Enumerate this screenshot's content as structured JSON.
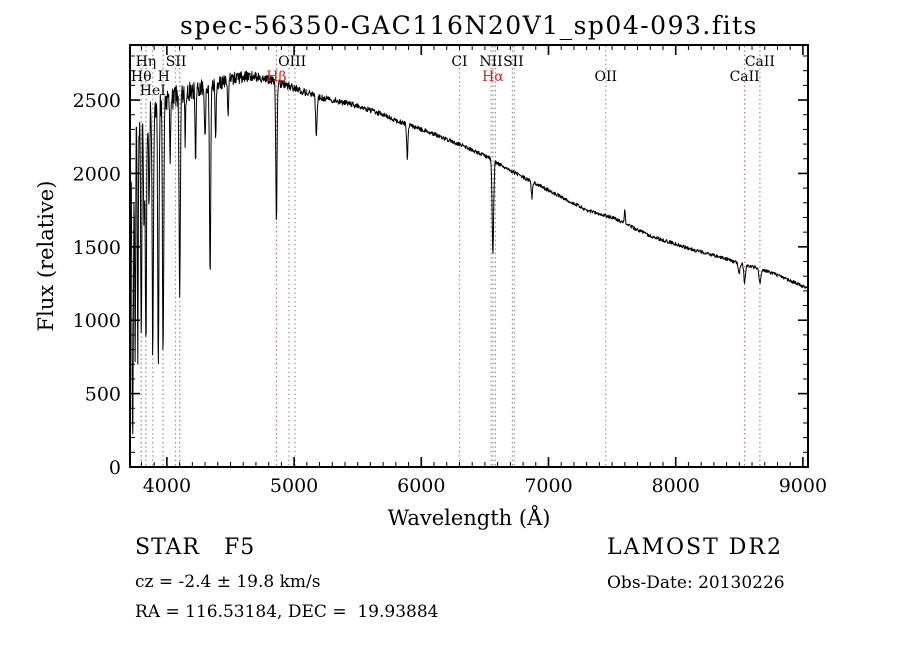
{
  "chart_data": {
    "type": "line",
    "title": "spec-56350-GAC116N20V1_sp04-093.fits",
    "xlabel": "Wavelength (Å)",
    "ylabel": "Flux (relative)",
    "xlim": [
      3710,
      9040
    ],
    "ylim": [
      0,
      2875
    ],
    "x_ticks": [
      4000,
      5000,
      6000,
      7000,
      8000,
      9000
    ],
    "x_minor_step": 100,
    "y_ticks": [
      0,
      500,
      1000,
      1500,
      2000,
      2500
    ],
    "y_minor_step": 100,
    "grid": false,
    "trace_color": "#000000",
    "sample_step": 3,
    "continuum": [
      [
        3710,
        2280
      ],
      [
        3760,
        2330
      ],
      [
        3810,
        2380
      ],
      [
        3860,
        2430
      ],
      [
        3910,
        2470
      ],
      [
        3960,
        2490
      ],
      [
        4000,
        2500
      ],
      [
        4100,
        2540
      ],
      [
        4200,
        2570
      ],
      [
        4300,
        2600
      ],
      [
        4400,
        2620
      ],
      [
        4500,
        2640
      ],
      [
        4600,
        2660
      ],
      [
        4700,
        2660
      ],
      [
        4800,
        2640
      ],
      [
        4900,
        2610
      ],
      [
        5000,
        2580
      ],
      [
        5100,
        2550
      ],
      [
        5200,
        2520
      ],
      [
        5300,
        2500
      ],
      [
        5400,
        2480
      ],
      [
        5500,
        2460
      ],
      [
        5600,
        2430
      ],
      [
        5700,
        2400
      ],
      [
        5800,
        2360
      ],
      [
        5900,
        2330
      ],
      [
        6000,
        2300
      ],
      [
        6100,
        2270
      ],
      [
        6200,
        2230
      ],
      [
        6300,
        2200
      ],
      [
        6400,
        2160
      ],
      [
        6500,
        2120
      ],
      [
        6600,
        2070
      ],
      [
        6700,
        2020
      ],
      [
        6800,
        1975
      ],
      [
        6900,
        1930
      ],
      [
        7000,
        1885
      ],
      [
        7100,
        1840
      ],
      [
        7200,
        1795
      ],
      [
        7300,
        1750
      ],
      [
        7400,
        1725
      ],
      [
        7500,
        1700
      ],
      [
        7600,
        1660
      ],
      [
        7700,
        1615
      ],
      [
        7800,
        1575
      ],
      [
        7900,
        1545
      ],
      [
        8000,
        1520
      ],
      [
        8100,
        1490
      ],
      [
        8200,
        1465
      ],
      [
        8300,
        1440
      ],
      [
        8400,
        1415
      ],
      [
        8500,
        1390
      ],
      [
        8600,
        1365
      ],
      [
        8700,
        1340
      ],
      [
        8800,
        1305
      ],
      [
        8900,
        1270
      ],
      [
        9000,
        1230
      ],
      [
        9040,
        1215
      ]
    ],
    "absorption_lines": [
      {
        "wl": 3712,
        "depth": 900,
        "sigma": 4
      },
      {
        "wl": 3727,
        "depth": 1500,
        "sigma": 4
      },
      {
        "wl": 3734,
        "depth": 1450,
        "sigma": 4
      },
      {
        "wl": 3750,
        "depth": 1520,
        "sigma": 4
      },
      {
        "wl": 3771,
        "depth": 1520,
        "sigma": 4
      },
      {
        "wl": 3798,
        "depth": 1560,
        "sigma": 4
      },
      {
        "wl": 3820,
        "depth": 700,
        "sigma": 4
      },
      {
        "wl": 3835,
        "depth": 1620,
        "sigma": 5
      },
      {
        "wl": 3860,
        "depth": 650,
        "sigma": 4
      },
      {
        "wl": 3889,
        "depth": 1700,
        "sigma": 5
      },
      {
        "wl": 3933,
        "depth": 1850,
        "sigma": 5
      },
      {
        "wl": 3970,
        "depth": 1800,
        "sigma": 5
      },
      {
        "wl": 4026,
        "depth": 420,
        "sigma": 4
      },
      {
        "wl": 4101,
        "depth": 1400,
        "sigma": 5
      },
      {
        "wl": 4144,
        "depth": 320,
        "sigma": 4
      },
      {
        "wl": 4226,
        "depth": 480,
        "sigma": 4
      },
      {
        "wl": 4300,
        "depth": 360,
        "sigma": 5
      },
      {
        "wl": 4340,
        "depth": 1330,
        "sigma": 5
      },
      {
        "wl": 4383,
        "depth": 360,
        "sigma": 4
      },
      {
        "wl": 4481,
        "depth": 260,
        "sigma": 4
      },
      {
        "wl": 4861,
        "depth": 930,
        "sigma": 5
      },
      {
        "wl": 5175,
        "depth": 260,
        "sigma": 6
      },
      {
        "wl": 5890,
        "depth": 230,
        "sigma": 5
      },
      {
        "wl": 6563,
        "depth": 640,
        "sigma": 6
      },
      {
        "wl": 6870,
        "depth": 110,
        "sigma": 5
      },
      {
        "wl": 8498,
        "depth": 80,
        "sigma": 6
      },
      {
        "wl": 8542,
        "depth": 120,
        "sigma": 7
      },
      {
        "wl": 8662,
        "depth": 100,
        "sigma": 7
      }
    ],
    "emission_spikes": [
      {
        "wl": 7600,
        "height": 85,
        "sigma": 4
      }
    ],
    "noise": {
      "base": 12,
      "blue_extra": 125,
      "decay": 600
    },
    "line_markers": [
      {
        "wl": 3798,
        "color": "#b06060"
      },
      {
        "wl": 3835,
        "color": "#b06060"
      },
      {
        "wl": 3889,
        "color": "#8a8a8a"
      },
      {
        "wl": 3970,
        "color": "#b06060"
      },
      {
        "wl": 4068,
        "color": "#8a8a8a"
      },
      {
        "wl": 4101,
        "color": "#b06060"
      },
      {
        "wl": 4861,
        "color": "#b06060"
      },
      {
        "wl": 4959,
        "color": "#8a8a8a"
      },
      {
        "wl": 5007,
        "color": "#8a8a8a"
      },
      {
        "wl": 6300,
        "color": "#8a8a8a"
      },
      {
        "wl": 6548,
        "color": "#8a8a8a"
      },
      {
        "wl": 6563,
        "color": "#b06060"
      },
      {
        "wl": 6583,
        "color": "#8a8a8a"
      },
      {
        "wl": 6716,
        "color": "#8a8a8a"
      },
      {
        "wl": 6731,
        "color": "#8a8a8a"
      },
      {
        "wl": 7450,
        "color": "#8a8a8a"
      },
      {
        "wl": 8542,
        "color": "#b06060"
      },
      {
        "wl": 8662,
        "color": "#b06060"
      }
    ],
    "line_labels": [
      {
        "text": "Hη",
        "wl": 3835,
        "row": 1,
        "color": "#000000"
      },
      {
        "text": "SII",
        "wl": 4072,
        "row": 1,
        "color": "#000000"
      },
      {
        "text": "Hθ",
        "wl": 3798,
        "row": 2,
        "color": "#000000"
      },
      {
        "text": "H",
        "wl": 3975,
        "row": 2,
        "color": "#000000"
      },
      {
        "text": "HeI",
        "wl": 3889,
        "row": 3,
        "color": "#000000"
      },
      {
        "text": "OIII",
        "wl": 4985,
        "row": 1,
        "color": "#000000"
      },
      {
        "text": "Hβ",
        "wl": 4861,
        "row": 2,
        "color": "#cc2222"
      },
      {
        "text": "CI",
        "wl": 6300,
        "row": 1,
        "color": "#000000"
      },
      {
        "text": "NII",
        "wl": 6548,
        "row": 1,
        "color": "#000000"
      },
      {
        "text": "SII",
        "wl": 6724,
        "row": 1,
        "color": "#000000"
      },
      {
        "text": "Hα",
        "wl": 6563,
        "row": 2,
        "color": "#cc2222"
      },
      {
        "text": "OII",
        "wl": 7450,
        "row": 2,
        "color": "#000000"
      },
      {
        "text": "CaII",
        "wl": 8662,
        "row": 1,
        "color": "#000000"
      },
      {
        "text": "CaII",
        "wl": 8542,
        "row": 2,
        "color": "#000000"
      }
    ]
  },
  "footer": {
    "class_label": "STAR   F5",
    "survey": "LAMOST DR2",
    "cz": "cz = -2.4 ± 19.8 km/s",
    "obs_date": "Obs-Date: 20130226",
    "coords": "RA = 116.53184, DEC =  19.93884"
  }
}
